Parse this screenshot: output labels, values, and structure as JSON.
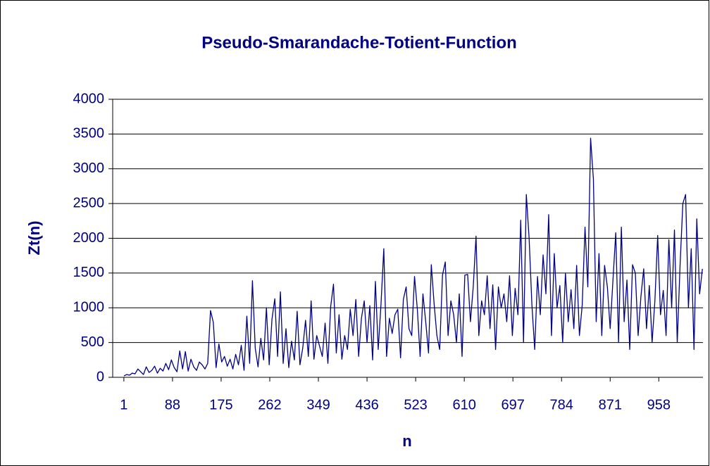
{
  "chart_data": {
    "type": "line",
    "title": "Pseudo-Smarandache-Totient-Function",
    "x_label": "n",
    "y_label": "Zt(n)",
    "x": [
      1,
      6,
      11,
      16,
      21,
      26,
      31,
      36,
      41,
      46,
      51,
      56,
      61,
      66,
      71,
      76,
      81,
      86,
      91,
      96,
      101,
      106,
      111,
      116,
      121,
      126,
      131,
      136,
      141,
      146,
      151,
      156,
      161,
      166,
      171,
      176,
      181,
      186,
      191,
      196,
      201,
      206,
      211,
      216,
      221,
      226,
      231,
      236,
      241,
      246,
      251,
      256,
      261,
      266,
      271,
      276,
      281,
      286,
      291,
      296,
      301,
      306,
      311,
      316,
      321,
      326,
      331,
      336,
      341,
      346,
      351,
      356,
      361,
      366,
      371,
      376,
      381,
      386,
      391,
      396,
      401,
      406,
      411,
      416,
      421,
      426,
      431,
      436,
      441,
      446,
      451,
      456,
      461,
      466,
      471,
      476,
      481,
      486,
      491,
      496,
      501,
      506,
      511,
      516,
      521,
      526,
      531,
      536,
      541,
      546,
      551,
      556,
      561,
      566,
      571,
      576,
      581,
      586,
      591,
      596,
      601,
      606,
      611,
      616,
      621,
      626,
      631,
      636,
      641,
      646,
      651,
      656,
      661,
      666,
      671,
      676,
      681,
      686,
      691,
      696,
      701,
      706,
      711,
      716,
      721,
      726,
      731,
      736,
      741,
      746,
      751,
      756,
      761,
      766,
      771,
      776,
      781,
      786,
      791,
      796,
      801,
      806,
      811,
      816,
      821,
      826,
      831,
      836,
      841,
      846,
      851,
      856,
      861,
      866,
      871,
      876,
      881,
      886,
      891,
      896,
      901,
      906,
      911,
      916,
      921,
      926,
      931,
      936,
      941,
      946,
      951,
      956,
      961,
      966,
      971,
      976,
      981,
      986,
      991,
      996,
      1001,
      1006,
      1011,
      1016,
      1021,
      1026,
      1031,
      1036
    ],
    "series": [
      {
        "name": "Zt(n)",
        "color": "#000080",
        "values": [
          20,
          40,
          30,
          60,
          50,
          120,
          80,
          40,
          150,
          70,
          100,
          160,
          60,
          130,
          90,
          200,
          110,
          250,
          140,
          80,
          380,
          120,
          370,
          90,
          260,
          150,
          100,
          220,
          180,
          120,
          200,
          960,
          790,
          140,
          480,
          220,
          300,
          160,
          260,
          120,
          330,
          180,
          460,
          100,
          880,
          200,
          1390,
          420,
          150,
          560,
          250,
          1000,
          180,
          840,
          1130,
          300,
          1230,
          200,
          700,
          140,
          520,
          250,
          950,
          180,
          420,
          820,
          300,
          1100,
          260,
          600,
          450,
          300,
          780,
          200,
          1020,
          1340,
          350,
          900,
          260,
          600,
          400,
          980,
          600,
          1120,
          300,
          850,
          1100,
          500,
          1030,
          250,
          1380,
          400,
          1050,
          1850,
          300,
          850,
          630,
          900,
          980,
          280,
          1120,
          1300,
          700,
          600,
          1450,
          980,
          300,
          1200,
          800,
          350,
          1620,
          1060,
          600,
          400,
          1470,
          1660,
          600,
          1100,
          900,
          500,
          1200,
          300,
          1470,
          1480,
          800,
          1300,
          2030,
          600,
          1100,
          900,
          1460,
          700,
          1330,
          400,
          1300,
          1000,
          1200,
          800,
          1460,
          600,
          1280,
          900,
          2260,
          500,
          2630,
          2000,
          1040,
          400,
          1450,
          900,
          1760,
          1200,
          2340,
          600,
          1780,
          1000,
          1320,
          500,
          1500,
          800,
          1260,
          700,
          1610,
          600,
          1040,
          2160,
          1300,
          3440,
          2850,
          800,
          1780,
          600,
          1610,
          1300,
          700,
          1400,
          2080,
          500,
          2160,
          800,
          1400,
          400,
          1620,
          1500,
          600,
          1160,
          1560,
          700,
          1320,
          500,
          1100,
          2040,
          900,
          1250,
          600,
          1980,
          1000,
          2120,
          500,
          1600,
          2500,
          2630,
          1000,
          1850,
          400,
          2280,
          1200,
          1560
        ]
      }
    ],
    "xlim": [
      -19,
      1037
    ],
    "xticks": [
      1,
      88,
      175,
      262,
      349,
      436,
      523,
      610,
      697,
      784,
      871,
      958
    ],
    "ylim": [
      0,
      4000
    ],
    "yticks": [
      0,
      500,
      1000,
      1500,
      2000,
      2500,
      3000,
      3500,
      4000
    ],
    "grid": true
  }
}
